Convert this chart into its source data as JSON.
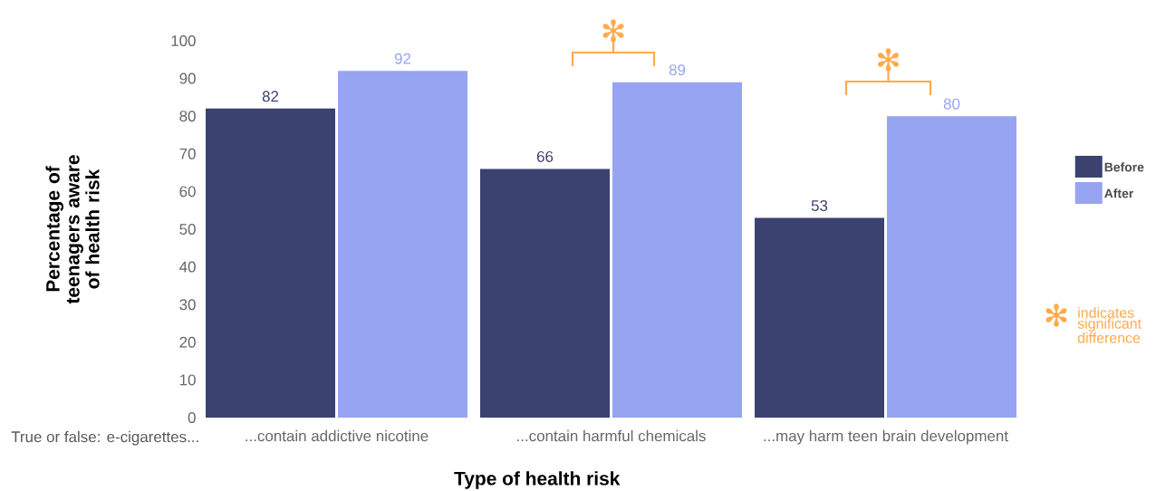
{
  "chart_data": {
    "type": "bar",
    "xlabel": "Type of health risk",
    "ylabel": "Percentage of teenagers aware of health risk",
    "categories": [
      "...contain addictive nicotine",
      "...contain harmful chemicals",
      "...may harm teen brain development"
    ],
    "series": [
      {
        "name": "Before",
        "color": "#3b4270",
        "values": [
          82,
          66,
          53
        ]
      },
      {
        "name": "After",
        "color": "#97a4f2",
        "values": [
          92,
          89,
          80
        ]
      }
    ],
    "ylim": [
      0,
      100
    ],
    "yticks": [
      0,
      10,
      20,
      30,
      40,
      50,
      60,
      70,
      80,
      90,
      100
    ],
    "data_labels": true,
    "legend": "right",
    "grid": false,
    "annotations": [
      "✻",
      "✻",
      "✻",
      "indicates significant difference",
      "True or false: e-cigarettes..."
    ]
  }
}
